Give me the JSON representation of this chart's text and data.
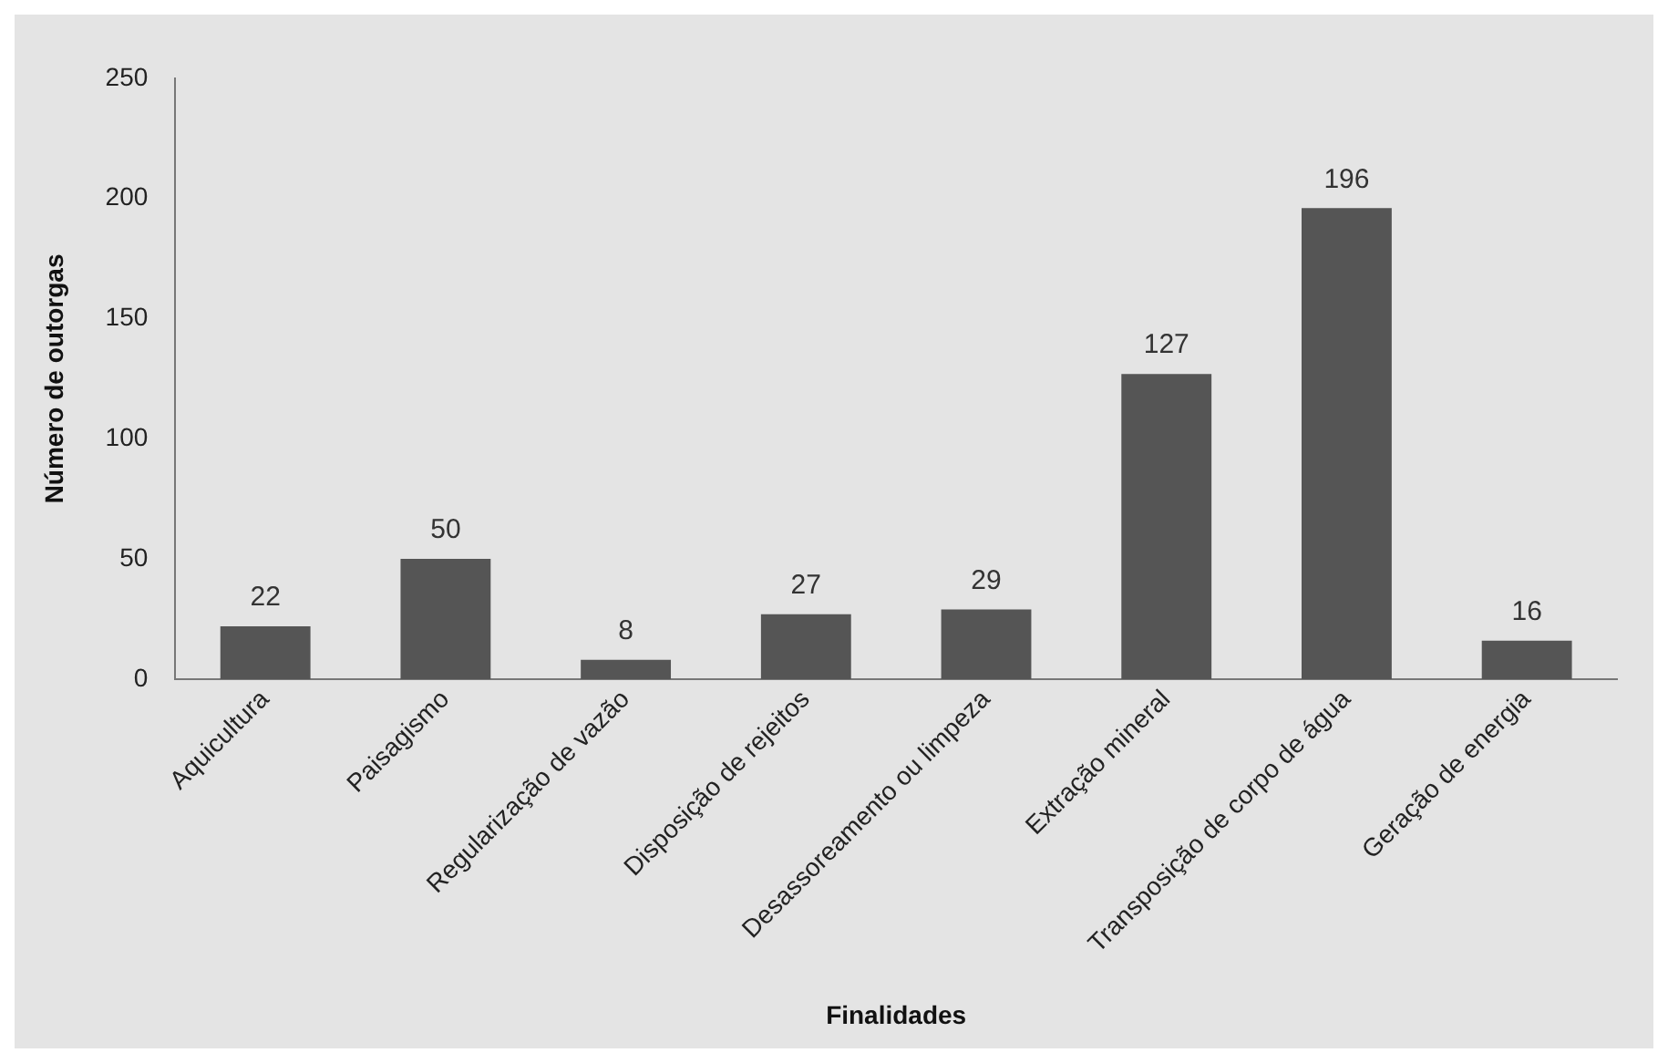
{
  "chart_data": {
    "type": "bar",
    "xlabel": "Finalidades",
    "ylabel": "Número de outorgas",
    "categories": [
      "Aquicultura",
      "Paisagismo",
      "Regularização de vazão",
      "Disposição de rejeitos",
      "Desassoreamento ou limpeza",
      "Extração mineral",
      "Transposição de corpo de água",
      "Geração de energia"
    ],
    "values": [
      22,
      50,
      8,
      27,
      29,
      127,
      196,
      16
    ],
    "color": "#555555",
    "ylim": [
      0,
      250
    ],
    "yticks": [
      0,
      50,
      100,
      150,
      200,
      250
    ],
    "grid": false,
    "legend": false,
    "data_labels": true
  }
}
